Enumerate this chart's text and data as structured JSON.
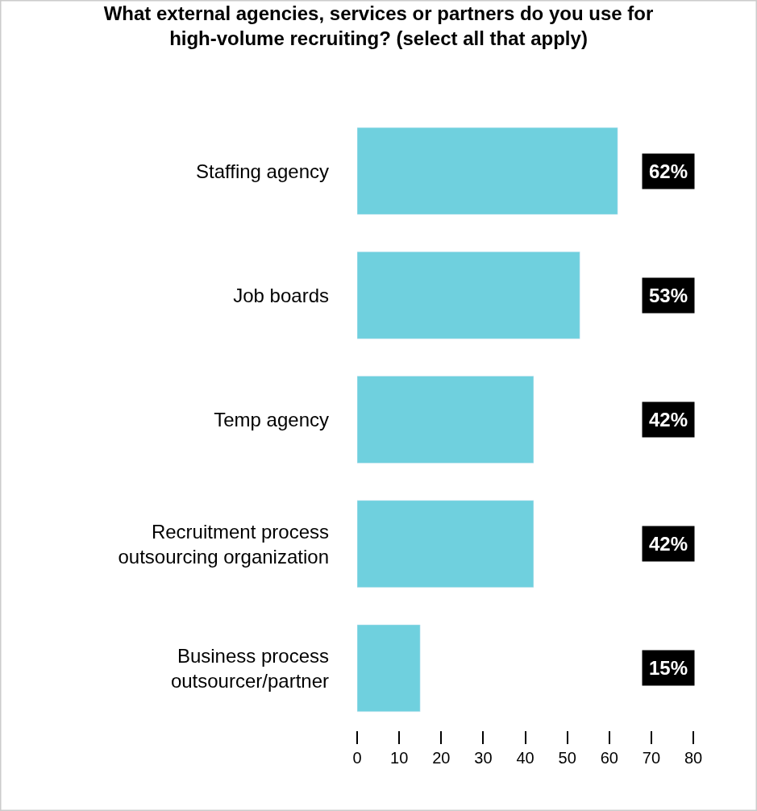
{
  "chart_data": {
    "type": "bar",
    "orientation": "horizontal",
    "title": "What external agencies, services or partners do you use for\nhigh-volume recruiting? (select all that apply)",
    "categories": [
      "Staffing agency",
      "Job boards",
      "Temp agency",
      "Recruitment process\noutsourcing organization",
      "Business process\noutsourcer/partner"
    ],
    "values": [
      62,
      53,
      42,
      42,
      15
    ],
    "value_labels": [
      "62%",
      "53%",
      "42%",
      "42%",
      "15%"
    ],
    "color": "#6fd0de",
    "xlim": [
      0,
      80
    ],
    "xticks": [
      0,
      10,
      20,
      30,
      40,
      50,
      60,
      70,
      80
    ]
  }
}
